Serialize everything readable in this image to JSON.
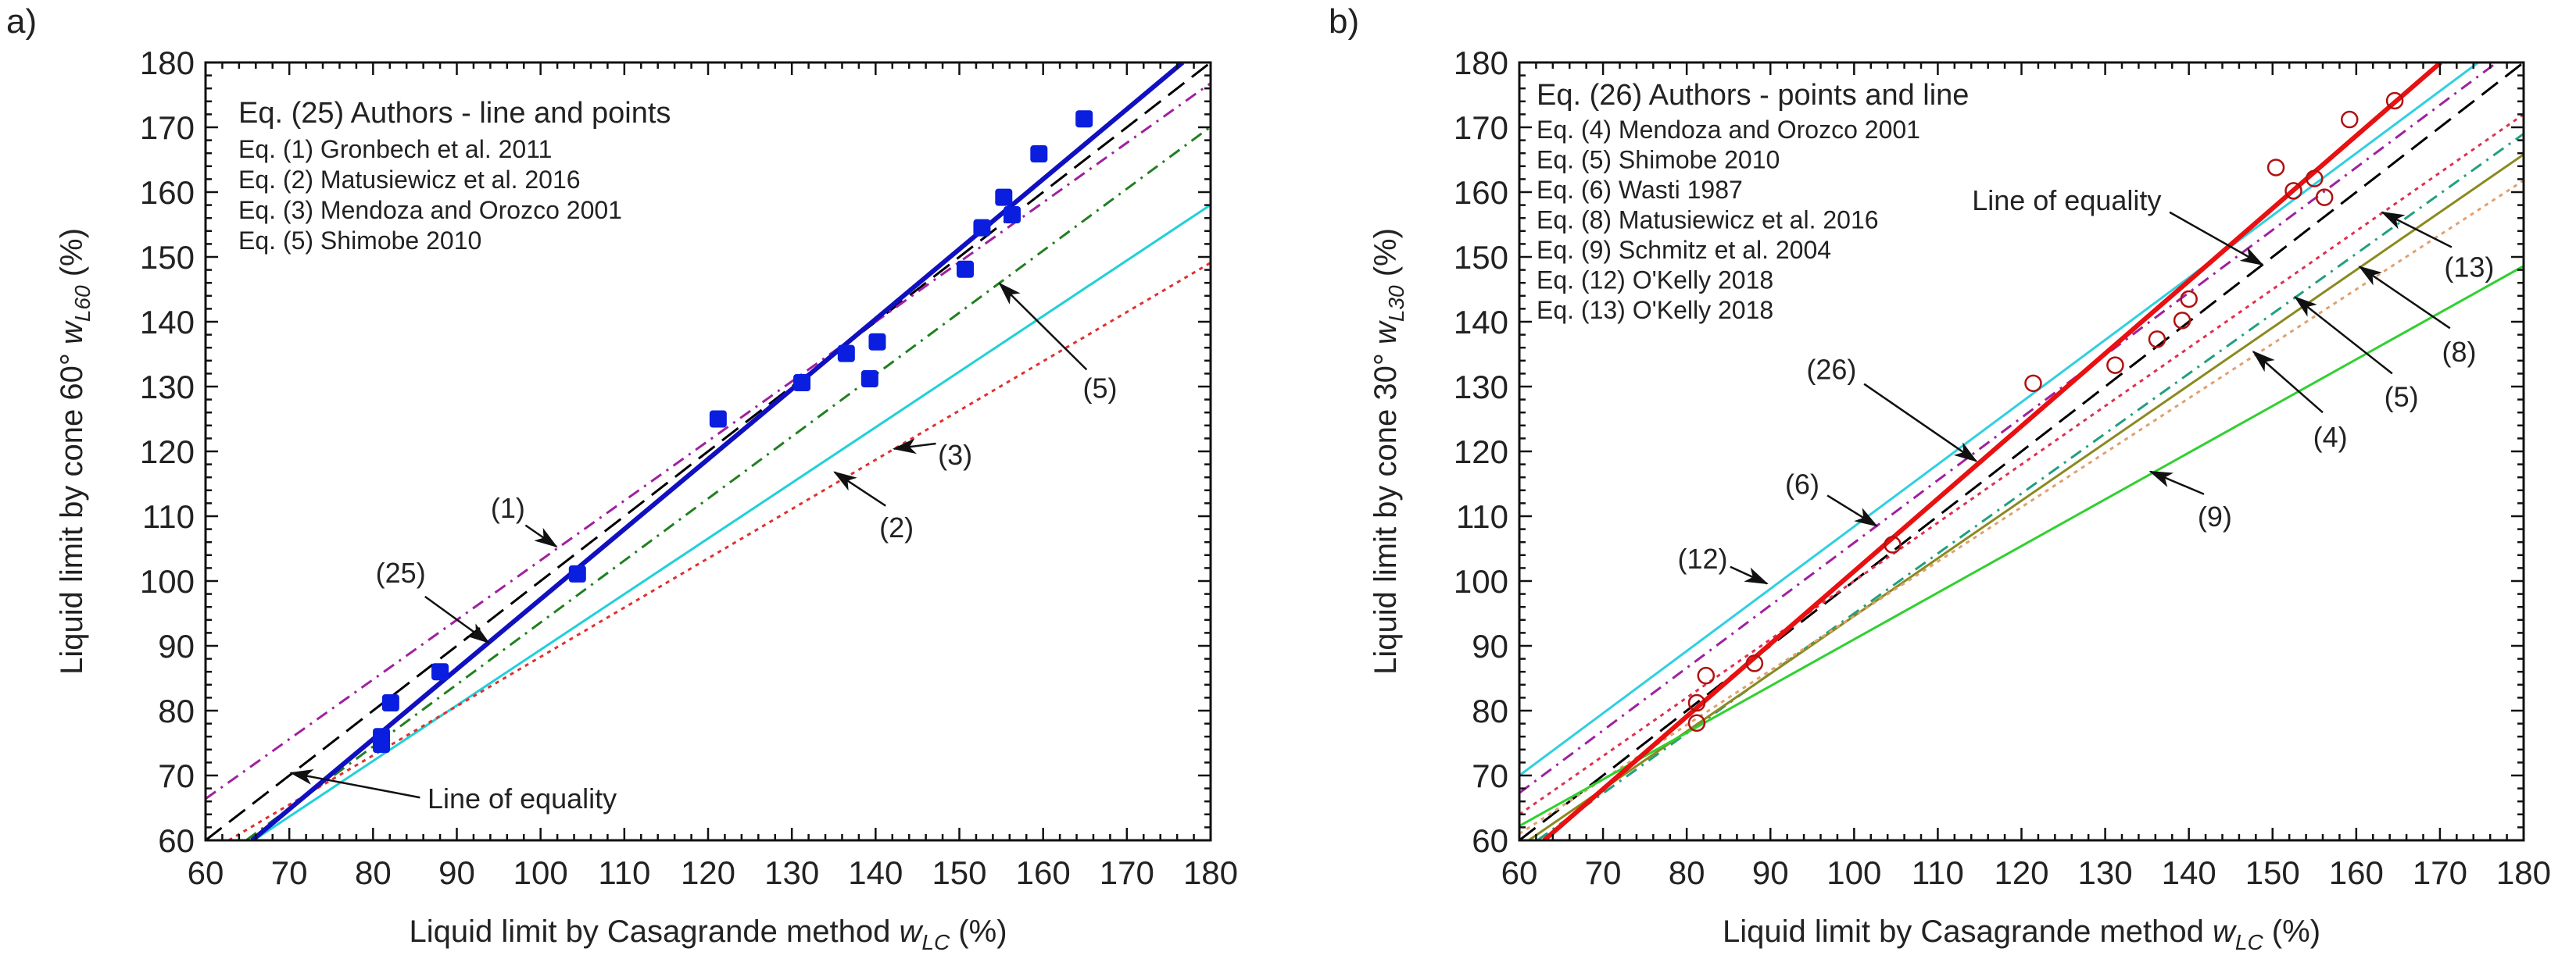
{
  "chart_data": [
    {
      "type": "line",
      "panel_label": "a)",
      "xlabel": {
        "prefix": "Liquid limit by Casagrande method ",
        "symbol": "w",
        "sub": "LC",
        "suffix": " (%)"
      },
      "ylabel": {
        "prefix": "Liquid limit by cone 60° ",
        "symbol": "w",
        "sub": "L60",
        "suffix": "  (%)"
      },
      "xlim": [
        60,
        180
      ],
      "ylim": [
        60,
        180
      ],
      "xticks": [
        60,
        70,
        80,
        90,
        100,
        110,
        120,
        130,
        140,
        150,
        160,
        170,
        180
      ],
      "yticks": [
        60,
        70,
        80,
        90,
        100,
        110,
        120,
        130,
        140,
        150,
        160,
        170,
        180
      ],
      "grid": false,
      "legend": {
        "placement": "top-left",
        "title": "Eq. (25) Authors - line and points",
        "items": [
          "Eq. (1) Gronbech et al. 2011",
          "Eq. (2) Matusiewicz et al. 2016",
          "Eq. (3) Mendoza and Orozco 2001",
          "Eq. (5) Shimobe 2010"
        ]
      },
      "lines": [
        {
          "name": "Line of equality",
          "slope": 1.0,
          "intercept": 0,
          "color": "#000000",
          "style": "dashed"
        },
        {
          "name": "Eq. (1)",
          "slope": 0.92,
          "intercept": 11.2,
          "color": "#a020a0",
          "style": "dashdot"
        },
        {
          "name": "Eq. (5)",
          "slope": 0.956,
          "intercept": -2.0,
          "color": "#208020",
          "style": "dashdot"
        },
        {
          "name": "Eq. (2)",
          "slope": 0.858,
          "intercept": 3.6,
          "color": "#20d0d8",
          "style": "solid"
        },
        {
          "name": "Eq. (3)",
          "slope": 0.76,
          "intercept": 12.3,
          "color": "#e03030",
          "style": "dotted"
        },
        {
          "name": "Eq. (25)",
          "slope": 1.08,
          "intercept": -10.8,
          "color": "#1010c0",
          "style": "bold"
        }
      ],
      "points": {
        "marker": "filled-square",
        "color": "#0a1ee0",
        "x": [
          81,
          81,
          82.1,
          88,
          104.4,
          121.2,
          131.2,
          136.5,
          139.3,
          140.2,
          150.7,
          152.7,
          155.3,
          156.3,
          159.5,
          164.9
        ],
        "y": [
          76,
          74.8,
          81.2,
          86,
          101.1,
          125,
          130.6,
          135.1,
          131.2,
          136.9,
          148.1,
          154.5,
          159.2,
          156.5,
          165.9,
          171.3
        ]
      },
      "annotations": [
        {
          "text": "(1)",
          "label": [
            96.1,
            111.3
          ],
          "from": [
            98.2,
            108.6
          ],
          "tip": [
            101.9,
            105.3
          ]
        },
        {
          "text": "(25)",
          "label": [
            83.3,
            101.3
          ],
          "from": [
            86.2,
            97.6
          ],
          "tip": [
            93.8,
            90.5
          ]
        },
        {
          "text": "Line of equality",
          "label": [
            86.5,
            66.5
          ],
          "anchor": "start",
          "from": [
            85.6,
            66.6
          ],
          "tip": [
            70.2,
            70.4
          ]
        },
        {
          "text": "(2)",
          "label": [
            142.5,
            108.3
          ],
          "from": [
            141.2,
            111.6
          ],
          "tip": [
            135.1,
            116.8
          ]
        },
        {
          "text": "(3)",
          "label": [
            149.5,
            119.5
          ],
          "from": [
            147.2,
            121.2
          ],
          "tip": [
            142.2,
            120.4
          ]
        },
        {
          "text": "(5)",
          "label": [
            166.8,
            129.8
          ],
          "from": [
            165.2,
            132.6
          ],
          "tip": [
            154.8,
            145.9
          ]
        }
      ]
    },
    {
      "type": "line",
      "panel_label": "b)",
      "xlabel": {
        "prefix": "Liquid limit by Casagrande method ",
        "symbol": "w",
        "sub": "LC",
        "suffix": " (%)"
      },
      "ylabel": {
        "prefix": "Liquid limit by cone 30° ",
        "symbol": "w",
        "sub": "L30",
        "suffix": "  (%)"
      },
      "xlim": [
        60,
        180
      ],
      "ylim": [
        60,
        180
      ],
      "xticks": [
        60,
        70,
        80,
        90,
        100,
        110,
        120,
        130,
        140,
        150,
        160,
        170,
        180
      ],
      "yticks": [
        60,
        70,
        80,
        90,
        100,
        110,
        120,
        130,
        140,
        150,
        160,
        170,
        180
      ],
      "grid": false,
      "legend": {
        "placement": "top-left",
        "title": "Eq. (26) Authors - points and line",
        "items": [
          "Eq. (4) Mendoza and Orozco 2001",
          "Eq. (5) Shimobe 2010",
          "Eq. (6) Wasti 1987",
          "Eq. (8) Matusiewicz et al. 2016",
          "Eq. (9) Schmitz et al. 2004",
          "Eq. (12) O'Kelly 2018",
          "Eq. (13) O'Kelly 2018"
        ]
      },
      "lines": [
        {
          "name": "Eq. (12)",
          "slope": 0.96,
          "intercept": 12.4,
          "color": "#30d0e0",
          "style": "solid"
        },
        {
          "name": "Eq. (6)",
          "slope": 0.965,
          "intercept": 9.4,
          "color": "#a020a0",
          "style": "dashdot"
        },
        {
          "name": "Line of equality",
          "slope": 1.0,
          "intercept": 0,
          "color": "#000000",
          "style": "dashed"
        },
        {
          "name": "Eq. (13)",
          "slope": 0.9,
          "intercept": 10,
          "color": "#e03050",
          "style": "dotted"
        },
        {
          "name": "Eq. (5)",
          "slope": 0.925,
          "intercept": 2.5,
          "color": "#20a080",
          "style": "dashdot"
        },
        {
          "name": "Eq. (8)",
          "slope": 0.89,
          "intercept": 5.6,
          "color": "#8a8a20",
          "style": "solid"
        },
        {
          "name": "Eq. (4)",
          "slope": 0.84,
          "intercept": 10.6,
          "color": "#e0a070",
          "style": "dotted"
        },
        {
          "name": "Eq. (9)",
          "slope": 0.72,
          "intercept": 19,
          "color": "#30d030",
          "style": "solid"
        },
        {
          "name": "Eq. (26)",
          "slope": 1.12,
          "intercept": -10.5,
          "color": "#e81010",
          "style": "bold"
        }
      ],
      "points": {
        "marker": "open-circle",
        "color": "#b01010",
        "x": [
          81.2,
          82.3,
          81.2,
          88.1,
          104.6,
          121.4,
          131.2,
          136.2,
          139.2,
          140,
          150.4,
          152.5,
          155,
          156.2,
          159.2,
          164.6
        ],
        "y": [
          81.2,
          85.4,
          78.1,
          87.3,
          105.6,
          130.5,
          133.3,
          137.3,
          140.2,
          143.5,
          163.8,
          160.2,
          162.1,
          159.2,
          171.2,
          174.1
        ]
      },
      "annotations": [
        {
          "text": "Line of equality",
          "label": [
            125.4,
            158.8
          ],
          "from": [
            137.7,
            156.9
          ],
          "tip": [
            148.8,
            148.8
          ]
        },
        {
          "text": "(26)",
          "label": [
            97.3,
            132.7
          ],
          "from": [
            101.2,
            130.4
          ],
          "tip": [
            114.6,
            118.5
          ]
        },
        {
          "text": "(6)",
          "label": [
            93.8,
            115
          ],
          "from": [
            96.8,
            113.2
          ],
          "tip": [
            102.7,
            108.5
          ]
        },
        {
          "text": "(12)",
          "label": [
            81.9,
            103.5
          ],
          "from": [
            85.2,
            102.2
          ],
          "tip": [
            89.6,
            99.6
          ]
        },
        {
          "text": "(9)",
          "label": [
            143.1,
            110
          ],
          "from": [
            141.8,
            113.4
          ],
          "tip": [
            135.4,
            116.9
          ]
        },
        {
          "text": "(4)",
          "label": [
            156.9,
            122.3
          ],
          "from": [
            156.0,
            126.0
          ],
          "tip": [
            147.7,
            135.4
          ]
        },
        {
          "text": "(5)",
          "label": [
            165.4,
            128.5
          ],
          "from": [
            164.3,
            132.0
          ],
          "tip": [
            152.7,
            143.8
          ]
        },
        {
          "text": "(8)",
          "label": [
            172.3,
            135.4
          ],
          "from": [
            171.2,
            139.0
          ],
          "tip": [
            160.4,
            148.5
          ]
        },
        {
          "text": "(13)",
          "label": [
            173.5,
            148.5
          ],
          "from": [
            171.4,
            151.5
          ],
          "tip": [
            163.1,
            156.9
          ]
        }
      ]
    }
  ]
}
